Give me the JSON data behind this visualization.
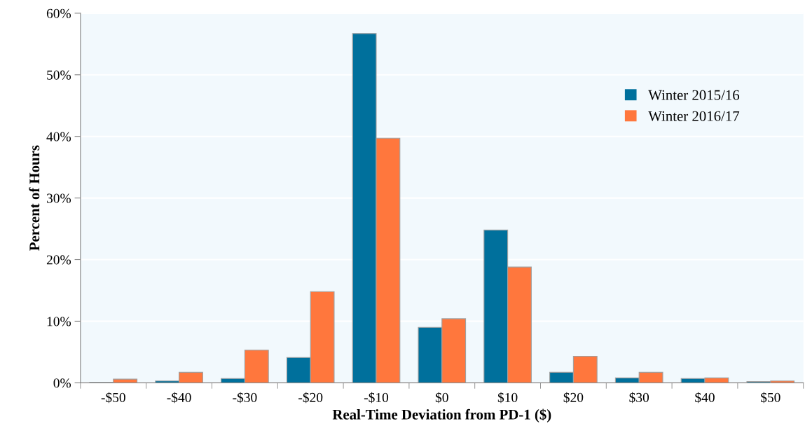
{
  "chart_data": {
    "type": "bar",
    "xlabel": "Real-Time Deviation from PD-1 ($)",
    "ylabel": "Percent of Hours",
    "categories": [
      "-$50",
      "-$40",
      "-$30",
      "-$20",
      "-$10",
      "$0",
      "$10",
      "$20",
      "$30",
      "$40",
      "$50"
    ],
    "series": [
      {
        "name": "Winter 2015/16",
        "color": "#00709c",
        "values": [
          0.1,
          0.3,
          0.7,
          4.1,
          56.7,
          9.0,
          24.8,
          1.7,
          0.8,
          0.7,
          0.2
        ]
      },
      {
        "name": "Winter 2016/17",
        "color": "#ff773d",
        "values": [
          0.6,
          1.7,
          5.3,
          14.8,
          39.7,
          10.4,
          18.8,
          4.3,
          1.7,
          0.8,
          0.3
        ]
      }
    ],
    "ylim": [
      0,
      60
    ],
    "yticks": [
      {
        "value": 0,
        "label": "0%"
      },
      {
        "value": 10,
        "label": "10%"
      },
      {
        "value": 20,
        "label": "20%"
      },
      {
        "value": 30,
        "label": "30%"
      },
      {
        "value": 40,
        "label": "40%"
      },
      {
        "value": 50,
        "label": "50%"
      },
      {
        "value": 60,
        "label": "60%"
      }
    ],
    "grid": "y",
    "legend": "top right"
  }
}
